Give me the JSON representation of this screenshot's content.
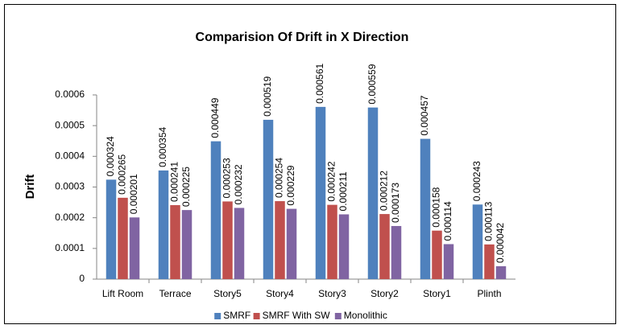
{
  "chart_data": {
    "type": "bar",
    "title": "Comparision Of Drift in X Direction",
    "y_label": "Drift",
    "categories": [
      "Lift Room",
      "Terrace",
      "Story5",
      "Story4",
      "Story3",
      "Story2",
      "Story1",
      "Plinth"
    ],
    "series": [
      {
        "name": "SMRF",
        "color": "#4f81bd",
        "values": [
          0.000324,
          0.000354,
          0.000449,
          0.000519,
          0.000561,
          0.000559,
          0.000457,
          0.000243
        ]
      },
      {
        "name": "SMRF With SW",
        "color": "#c0504d",
        "values": [
          0.000265,
          0.000241,
          0.000253,
          0.000254,
          0.000242,
          0.000212,
          0.000158,
          0.000113
        ]
      },
      {
        "name": "Monolithic",
        "color": "#8064a2",
        "values": [
          0.000201,
          0.000225,
          0.000232,
          0.000229,
          0.000211,
          0.000173,
          0.000114,
          4.2e-05
        ]
      }
    ],
    "ylim": [
      0,
      0.0006
    ],
    "yticks": [
      0,
      0.0001,
      0.0002,
      0.0003,
      0.0004,
      0.0005,
      0.0006
    ],
    "grid": false,
    "data_labels": true,
    "legend": "bottom"
  }
}
